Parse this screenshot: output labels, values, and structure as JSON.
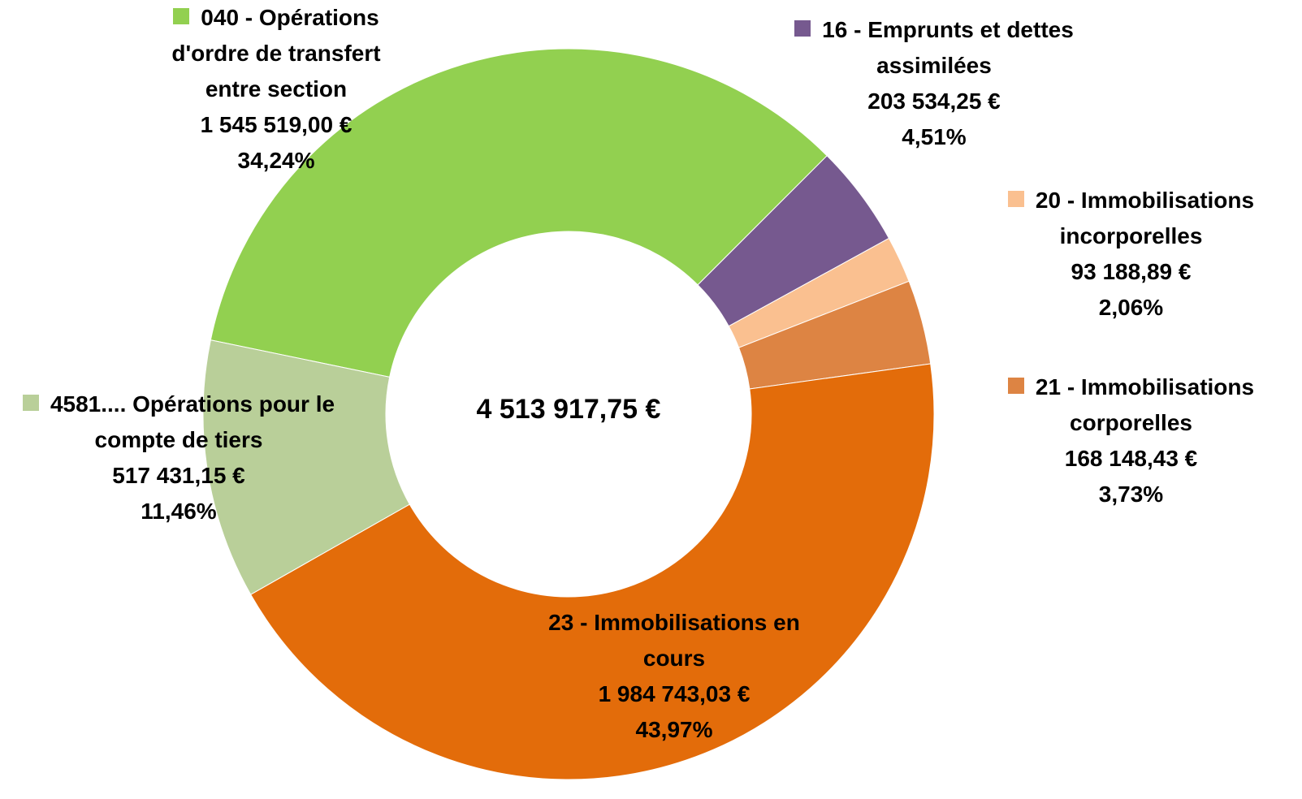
{
  "chart_data": {
    "type": "donut",
    "categories": [
      "040 - Opérations d'ordre de transfert entre section",
      "16 - Emprunts et dettes assimilées",
      "20 - Immobilisations incorporelles",
      "21 - Immobilisations corporelles",
      "23 - Immobilisations en cours",
      "4581.... Opérations pour le compte de tiers"
    ],
    "values": [
      1545519.0,
      203534.25,
      93188.89,
      168148.43,
      1984743.03,
      517431.15
    ],
    "value_labels": [
      "1 545 519,00 €",
      "203 534,25 €",
      "93 188,89 €",
      "168 148,43 €",
      "1 984 743,03 €",
      "517 431,15 €"
    ],
    "percent_labels": [
      "34,24%",
      "4,51%",
      "2,06%",
      "3,73%",
      "43,97%",
      "11,46%"
    ],
    "colors": [
      "#92d050",
      "#76598f",
      "#fac090",
      "#dd8443",
      "#e36c0a",
      "#b9cf99"
    ],
    "center_label": "4 513 917,75 €"
  }
}
